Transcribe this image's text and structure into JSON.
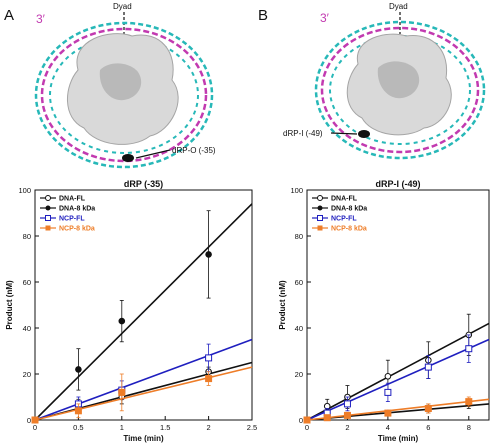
{
  "panels": [
    {
      "letter": "A",
      "prime": "3′",
      "dyad_label": "Dyad",
      "site_label": "dRP-O (-35)",
      "colors": {
        "strand1": "#c23ab0",
        "strand2": "#27b8b8",
        "core": "#d9d9d9"
      }
    },
    {
      "letter": "B",
      "prime": "3′",
      "dyad_label": "Dyad",
      "site_label": "dRP-I (-49)",
      "colors": {
        "strand1": "#c23ab0",
        "strand2": "#27b8b8",
        "core": "#d9d9d9"
      }
    }
  ],
  "chart_data": [
    {
      "type": "scatter",
      "title": "dRP (-35)",
      "xlabel": "Time (min)",
      "ylabel": "Product (nM)",
      "xlim": [
        0,
        2.5
      ],
      "ylim": [
        0,
        100
      ],
      "xticks": [
        0,
        0.5,
        1,
        1.5,
        2,
        2.5
      ],
      "yticks": [
        0,
        20,
        40,
        60,
        80,
        100
      ],
      "legend": "top-left",
      "series": [
        {
          "name": "DNA-FL",
          "color": "#111111",
          "marker": "open-circle",
          "x": [
            0,
            0.5,
            1,
            2
          ],
          "y": [
            0,
            6,
            10,
            21
          ],
          "err": [
            0,
            3,
            3,
            2
          ],
          "fit_end": 25
        },
        {
          "name": "DNA-8 kDa",
          "color": "#111111",
          "marker": "filled-circle",
          "x": [
            0,
            0.5,
            1,
            2
          ],
          "y": [
            0,
            22,
            43,
            72
          ],
          "err": [
            0,
            9,
            9,
            19
          ],
          "fit_end": 94
        },
        {
          "name": "NCP-FL",
          "color": "#1f1fbf",
          "marker": "open-square",
          "x": [
            0,
            0.5,
            1,
            2
          ],
          "y": [
            0,
            7,
            13,
            27
          ],
          "err": [
            0,
            3,
            4,
            6
          ],
          "fit_end": 35
        },
        {
          "name": "NCP-8 kDa",
          "color": "#ee7d28",
          "marker": "filled-square",
          "x": [
            0,
            0.5,
            1,
            2
          ],
          "y": [
            0,
            4,
            12,
            18
          ],
          "err": [
            0,
            3,
            8,
            3
          ],
          "fit_end": 23
        }
      ]
    },
    {
      "type": "scatter",
      "title": "dRP-I (-49)",
      "xlabel": "Time (min)",
      "ylabel": "Product (nM)",
      "xlim": [
        0,
        9
      ],
      "ylim": [
        0,
        100
      ],
      "xticks": [
        0,
        2,
        4,
        6,
        8
      ],
      "yticks": [
        0,
        20,
        40,
        60,
        80,
        100
      ],
      "legend": "top-left",
      "series": [
        {
          "name": "DNA-FL",
          "color": "#111111",
          "marker": "open-circle",
          "x": [
            0,
            1,
            2,
            4,
            6,
            8
          ],
          "y": [
            0,
            6,
            10,
            19,
            26,
            37
          ],
          "err": [
            0,
            3,
            5,
            7,
            8,
            9
          ],
          "fit_end": 42
        },
        {
          "name": "DNA-8 kDa",
          "color": "#111111",
          "marker": "filled-circle",
          "x": [
            0,
            1,
            2,
            4,
            6,
            8
          ],
          "y": [
            0,
            1,
            2,
            3,
            5,
            7
          ],
          "err": [
            0,
            1,
            1,
            1,
            2,
            2
          ],
          "fit_end": 7
        },
        {
          "name": "NCP-FL",
          "color": "#1f1fbf",
          "marker": "open-square",
          "x": [
            0,
            1,
            2,
            4,
            6,
            8
          ],
          "y": [
            0,
            3,
            7,
            12,
            23,
            31
          ],
          "err": [
            0,
            2,
            3,
            4,
            5,
            6
          ],
          "fit_end": 35
        },
        {
          "name": "NCP-8 kDa",
          "color": "#ee7d28",
          "marker": "filled-square",
          "x": [
            0,
            1,
            2,
            4,
            6,
            8
          ],
          "y": [
            0,
            1,
            2,
            3,
            5,
            8
          ],
          "err": [
            0,
            1,
            1,
            1,
            2,
            2
          ],
          "fit_end": 9
        }
      ]
    }
  ]
}
